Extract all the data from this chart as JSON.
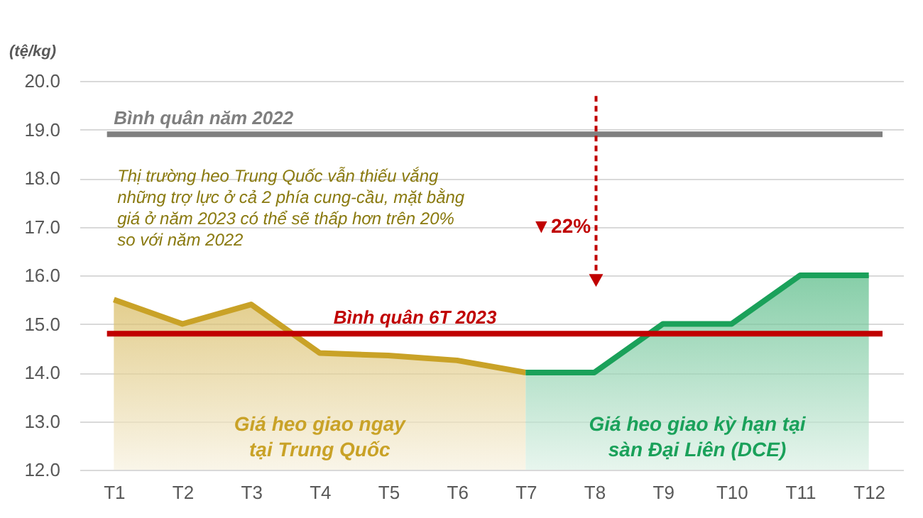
{
  "chart_data": {
    "type": "area",
    "ylabel": "(tệ/kg)",
    "categories": [
      "T1",
      "T2",
      "T3",
      "T4",
      "T5",
      "T6",
      "T7",
      "T8",
      "T9",
      "T10",
      "T11",
      "T12"
    ],
    "series": [
      {
        "name": "Giá heo giao ngay\ntại Trung Quốc",
        "color": "#c9a227",
        "values": [
          15.5,
          15.0,
          15.4,
          14.4,
          14.35,
          14.25,
          14.0,
          null,
          null,
          null,
          null,
          null
        ]
      },
      {
        "name": "Giá heo giao kỳ hạn tại\nsàn Đại Liên (DCE)",
        "color": "#1aa15a",
        "values": [
          null,
          null,
          null,
          null,
          null,
          null,
          14.0,
          14.0,
          15.0,
          15.0,
          16.0,
          16.0
        ]
      }
    ],
    "ylim": [
      12,
      20
    ],
    "yticks": [
      {
        "value": 12,
        "label": "12.0"
      },
      {
        "value": 13,
        "label": "13.0"
      },
      {
        "value": 14,
        "label": "14.0"
      },
      {
        "value": 15,
        "label": "15.0"
      },
      {
        "value": 16,
        "label": "16.0"
      },
      {
        "value": 17,
        "label": "17.0"
      },
      {
        "value": 18,
        "label": "18.0"
      },
      {
        "value": 19,
        "label": "19.0"
      },
      {
        "value": 20,
        "label": "20.0"
      }
    ],
    "grid": "y",
    "ref_lines": [
      {
        "axis": "y",
        "value": 18.9,
        "label": "Bình quân năm 2022",
        "color": "#7f7f7f"
      },
      {
        "axis": "y",
        "value": 14.8,
        "label": "Bình quân 6T 2023",
        "color": "#c00000"
      }
    ],
    "annotations": [
      "Thị trường heo Trung Quốc vẫn thiếu vắng\nnhững trợ lực ở cả 2 phía cung-cầu, mặt bằng\ngiá ở năm 2023 có thể sẽ thấp hơn trên 20%\nso với năm 2022",
      "▼22%"
    ]
  }
}
